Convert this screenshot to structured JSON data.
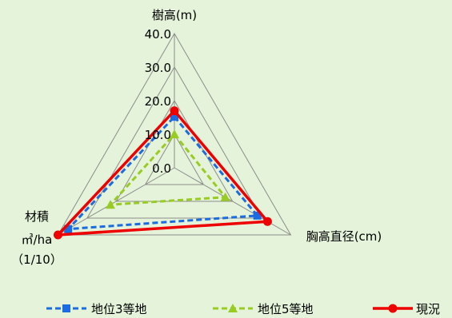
{
  "chart_data": {
    "type": "radar",
    "axes": [
      {
        "id": "height",
        "label_lines": [
          "樹高(m)"
        ]
      },
      {
        "id": "dbh",
        "label_lines": [
          "胸高直径(cm)"
        ]
      },
      {
        "id": "volume",
        "label_lines": [
          "材積",
          "㎥/ha",
          "（1/10）"
        ]
      }
    ],
    "rlim": [
      0,
      40
    ],
    "ticks": [
      0,
      10,
      20,
      30,
      40
    ],
    "tick_labels": [
      "0.0",
      "10.0",
      "20.0",
      "30.0",
      "40.0"
    ],
    "series": [
      {
        "name": "地位3等地",
        "values": [
          15.2,
          28.5,
          36.5
        ],
        "color": "#1a6ce0",
        "dash": "dashed",
        "marker": "square"
      },
      {
        "name": "地位5等地",
        "values": [
          10.0,
          17.5,
          22.0
        ],
        "color": "#99cc22",
        "dash": "dashed",
        "marker": "triangle"
      },
      {
        "name": "現況",
        "values": [
          17.0,
          32.0,
          40.0
        ],
        "color": "#ee0000",
        "dash": "solid",
        "marker": "circle"
      }
    ],
    "grid": true,
    "legend": "bottom"
  }
}
